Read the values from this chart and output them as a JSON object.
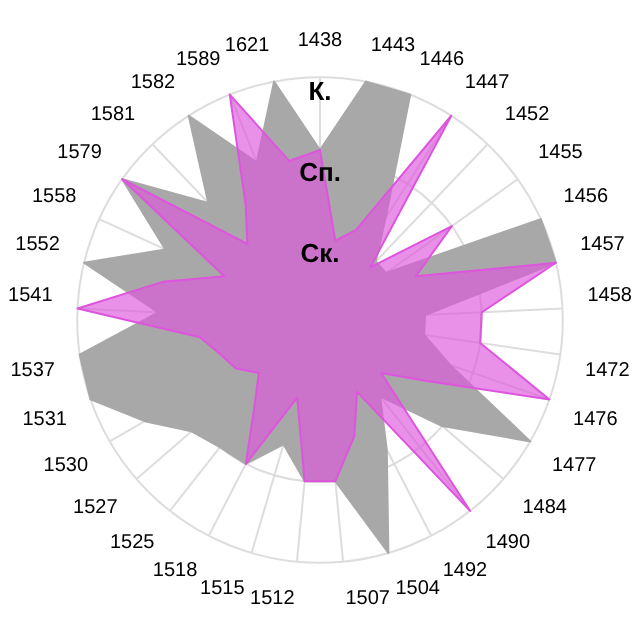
{
  "chart_data": {
    "type": "radar",
    "categories": [
      "1438",
      "1443",
      "1446",
      "1447",
      "1452",
      "1455",
      "1456",
      "1457",
      "1458",
      "1472",
      "1476",
      "1477",
      "1484",
      "1490",
      "1492",
      "1504",
      "1507",
      "1512",
      "1515",
      "1518",
      "1525",
      "1527",
      "1530",
      "1531",
      "1537",
      "1541",
      "1552",
      "1558",
      "1579",
      "1581",
      "1582",
      "1589",
      "1621"
    ],
    "series": [
      {
        "color": "#a8a8a8",
        "values": [
          2.1,
          3,
          3,
          1.5,
          1.0,
          1.0,
          3,
          3,
          1.3,
          1.3,
          1.7,
          3,
          2,
          1.2,
          1.8,
          3,
          2,
          2,
          1.6,
          2,
          2,
          2.1,
          2.5,
          3,
          3,
          2,
          3,
          2.1,
          3,
          2,
          3,
          2.1,
          3
        ]
      },
      {
        "color": "#dd55dd",
        "values": [
          2.1,
          1,
          1.2,
          3,
          0.9,
          2,
          1.3,
          3,
          2,
          2,
          3,
          1.5,
          1,
          3,
          1,
          1.5,
          2,
          2,
          1,
          2,
          1.3,
          1,
          1.2,
          1.3,
          1.5,
          3,
          2,
          1.3,
          3,
          1.3,
          1.7,
          3,
          2
        ]
      }
    ],
    "ylim": [
      0,
      3
    ],
    "yticks": [
      {
        "value": 1,
        "label": "Ск."
      },
      {
        "value": 2,
        "label": "Сп."
      },
      {
        "value": 3,
        "label": "К."
      }
    ],
    "grid": true,
    "legend": false,
    "marker": "none"
  }
}
